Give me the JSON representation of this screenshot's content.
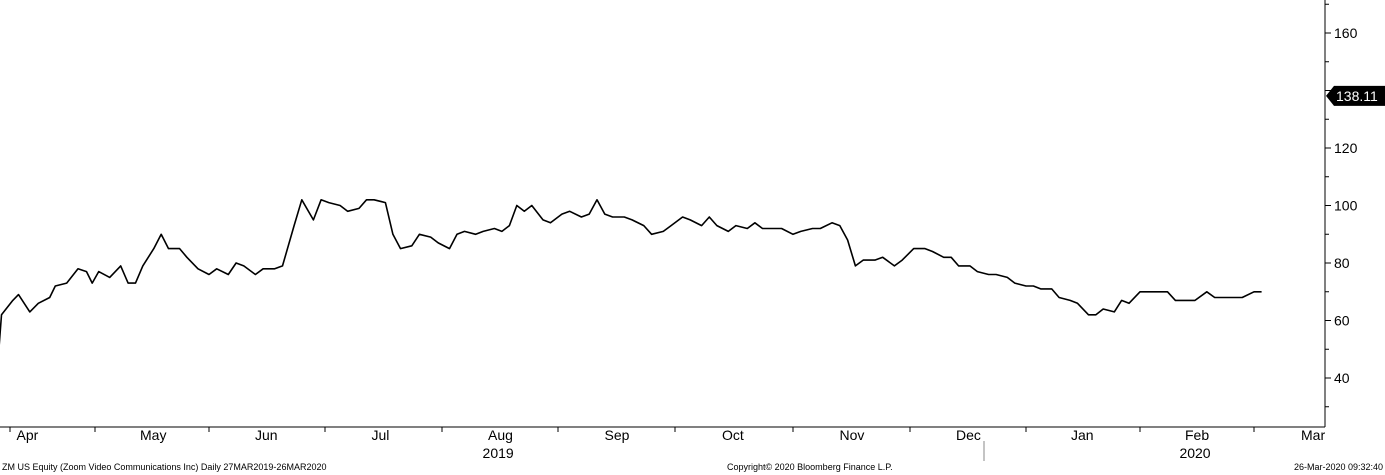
{
  "chart_data": {
    "type": "line",
    "ylim": [
      25,
      170
    ],
    "grid": false,
    "y_ticks": [
      40,
      60,
      80,
      100,
      120,
      140,
      160
    ],
    "y_tick_labels": [
      "40",
      "60",
      "80",
      "100",
      "120",
      "160"
    ],
    "month_labels": [
      {
        "label": "Apr",
        "date": "2019-04-01"
      },
      {
        "label": "May",
        "date": "2019-05-01"
      },
      {
        "label": "Jun",
        "date": "2019-06-01"
      },
      {
        "label": "Jul",
        "date": "2019-07-01"
      },
      {
        "label": "Aug",
        "date": "2019-08-01"
      },
      {
        "label": "Sep",
        "date": "2019-09-01"
      },
      {
        "label": "Oct",
        "date": "2019-10-01"
      },
      {
        "label": "Nov",
        "date": "2019-11-01"
      },
      {
        "label": "Dec",
        "date": "2019-12-01"
      },
      {
        "label": "Jan",
        "date": "2020-01-01"
      },
      {
        "label": "Feb",
        "date": "2020-02-01"
      },
      {
        "label": "Mar",
        "date": "2020-03-01"
      }
    ],
    "year_labels": [
      {
        "label": "2019",
        "date": "2019-08-16"
      },
      {
        "label": "2020",
        "date": "2020-02-15"
      }
    ],
    "last_value_label": "138.11",
    "last_value": 138.11,
    "series": [
      {
        "points": [
          [
            "2019-03-27",
            36
          ],
          [
            "2019-03-29",
            62
          ],
          [
            "2019-04-02",
            67
          ],
          [
            "2019-04-04",
            69
          ],
          [
            "2019-04-08",
            63
          ],
          [
            "2019-04-11",
            66
          ],
          [
            "2019-04-15",
            68
          ],
          [
            "2019-04-17",
            72
          ],
          [
            "2019-04-21",
            73
          ],
          [
            "2019-04-25",
            78
          ],
          [
            "2019-04-28",
            77
          ],
          [
            "2019-04-30",
            73
          ],
          [
            "2019-05-02",
            77
          ],
          [
            "2019-05-05",
            75
          ],
          [
            "2019-05-08",
            79
          ],
          [
            "2019-05-10",
            73
          ],
          [
            "2019-05-12",
            73
          ],
          [
            "2019-05-14",
            79
          ],
          [
            "2019-05-17",
            85
          ],
          [
            "2019-05-19",
            90
          ],
          [
            "2019-05-21",
            85
          ],
          [
            "2019-05-24",
            85
          ],
          [
            "2019-05-26",
            82
          ],
          [
            "2019-05-29",
            78
          ],
          [
            "2019-06-01",
            76
          ],
          [
            "2019-06-03",
            78
          ],
          [
            "2019-06-06",
            76
          ],
          [
            "2019-06-08",
            80
          ],
          [
            "2019-06-10",
            79
          ],
          [
            "2019-06-13",
            76
          ],
          [
            "2019-06-15",
            78
          ],
          [
            "2019-06-18",
            78
          ],
          [
            "2019-06-20",
            79
          ],
          [
            "2019-06-23",
            93
          ],
          [
            "2019-06-25",
            102
          ],
          [
            "2019-06-28",
            95
          ],
          [
            "2019-06-30",
            102
          ],
          [
            "2019-07-02",
            101
          ],
          [
            "2019-07-05",
            100
          ],
          [
            "2019-07-07",
            98
          ],
          [
            "2019-07-10",
            99
          ],
          [
            "2019-07-12",
            102
          ],
          [
            "2019-07-14",
            102
          ],
          [
            "2019-07-17",
            101
          ],
          [
            "2019-07-19",
            90
          ],
          [
            "2019-07-21",
            85
          ],
          [
            "2019-07-24",
            86
          ],
          [
            "2019-07-26",
            90
          ],
          [
            "2019-07-29",
            89
          ],
          [
            "2019-07-31",
            87
          ],
          [
            "2019-08-03",
            85
          ],
          [
            "2019-08-05",
            90
          ],
          [
            "2019-08-07",
            91
          ],
          [
            "2019-08-10",
            90
          ],
          [
            "2019-08-12",
            91
          ],
          [
            "2019-08-15",
            92
          ],
          [
            "2019-08-17",
            91
          ],
          [
            "2019-08-19",
            93
          ],
          [
            "2019-08-21",
            100
          ],
          [
            "2019-08-23",
            98
          ],
          [
            "2019-08-25",
            100
          ],
          [
            "2019-08-28",
            95
          ],
          [
            "2019-08-30",
            94
          ],
          [
            "2019-09-02",
            97
          ],
          [
            "2019-09-04",
            98
          ],
          [
            "2019-09-07",
            96
          ],
          [
            "2019-09-09",
            97
          ],
          [
            "2019-09-11",
            102
          ],
          [
            "2019-09-13",
            97
          ],
          [
            "2019-09-15",
            96
          ],
          [
            "2019-09-18",
            96
          ],
          [
            "2019-09-20",
            95
          ],
          [
            "2019-09-23",
            93
          ],
          [
            "2019-09-25",
            90
          ],
          [
            "2019-09-28",
            91
          ],
          [
            "2019-09-30",
            93
          ],
          [
            "2019-10-03",
            96
          ],
          [
            "2019-10-05",
            95
          ],
          [
            "2019-10-08",
            93
          ],
          [
            "2019-10-10",
            96
          ],
          [
            "2019-10-12",
            93
          ],
          [
            "2019-10-15",
            91
          ],
          [
            "2019-10-17",
            93
          ],
          [
            "2019-10-20",
            92
          ],
          [
            "2019-10-22",
            94
          ],
          [
            "2019-10-24",
            92
          ],
          [
            "2019-10-27",
            92
          ],
          [
            "2019-10-29",
            92
          ],
          [
            "2019-11-01",
            90
          ],
          [
            "2019-11-03",
            91
          ],
          [
            "2019-11-06",
            92
          ],
          [
            "2019-11-08",
            92
          ],
          [
            "2019-11-11",
            94
          ],
          [
            "2019-11-13",
            93
          ],
          [
            "2019-11-15",
            88
          ],
          [
            "2019-11-17",
            79
          ],
          [
            "2019-11-19",
            81
          ],
          [
            "2019-11-22",
            81
          ],
          [
            "2019-11-24",
            82
          ],
          [
            "2019-11-27",
            79
          ],
          [
            "2019-11-29",
            81
          ],
          [
            "2019-12-02",
            85
          ],
          [
            "2019-12-05",
            85
          ],
          [
            "2019-12-07",
            84
          ],
          [
            "2019-12-10",
            82
          ],
          [
            "2019-12-12",
            82
          ],
          [
            "2019-12-14",
            79
          ],
          [
            "2019-12-17",
            79
          ],
          [
            "2019-12-19",
            77
          ],
          [
            "2019-12-22",
            76
          ],
          [
            "2019-12-24",
            76
          ],
          [
            "2019-12-27",
            75
          ],
          [
            "2019-12-29",
            73
          ],
          [
            "2020-01-01",
            72
          ],
          [
            "2020-01-03",
            72
          ],
          [
            "2020-01-05",
            71
          ],
          [
            "2020-01-08",
            71
          ],
          [
            "2020-01-10",
            68
          ],
          [
            "2020-01-13",
            67
          ],
          [
            "2020-01-15",
            66
          ],
          [
            "2020-01-18",
            62
          ],
          [
            "2020-01-20",
            62
          ],
          [
            "2020-01-22",
            64
          ],
          [
            "2020-01-25",
            63
          ],
          [
            "2020-01-27",
            67
          ],
          [
            "2020-01-29",
            66
          ],
          [
            "2020-02-01",
            70
          ],
          [
            "2020-02-03",
            70
          ],
          [
            "2020-02-06",
            70
          ],
          [
            "2020-02-08",
            70
          ],
          [
            "2020-02-10",
            67
          ],
          [
            "2020-02-13",
            67
          ],
          [
            "2020-02-15",
            67
          ],
          [
            "2020-02-18",
            70
          ],
          [
            "2020-02-20",
            68
          ],
          [
            "2020-02-23",
            68
          ],
          [
            "2020-02-25",
            68
          ],
          [
            "2020-02-27",
            68
          ],
          [
            "2020-03-01",
            70
          ],
          [
            "2020-03-03",
            70
          ]
        ]
      }
    ]
  },
  "footer": {
    "left": "ZM US Equity (Zoom Video Communications Inc)  Daily 27MAR2019-26MAR2020",
    "middle": "Copyright© 2020 Bloomberg Finance L.P.",
    "right": "26-Mar-2020 09:32:40"
  }
}
